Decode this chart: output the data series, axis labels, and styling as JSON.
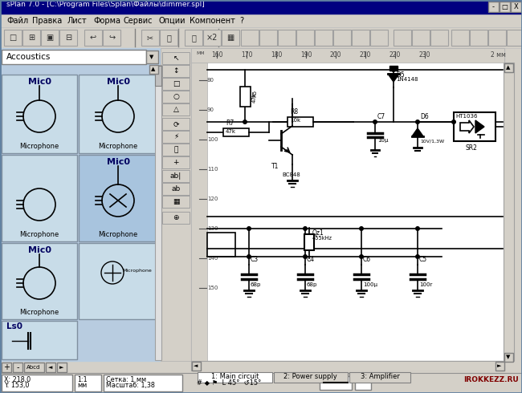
{
  "title": "sPlan 7.0 - [C:\\Program Files\\Splan\\Файлы\\dimmer.spl]",
  "bg_color": "#d4d0c8",
  "titlebar_color": "#000080",
  "titlebar_text_color": "#ffffff",
  "menubar_items": [
    "Файл",
    "Правка",
    "Лист",
    "Форма",
    "Сервис",
    "Опции",
    "Компонент",
    "?"
  ],
  "dropdown_text": "Accoustics",
  "tab_labels": [
    "1: Main circuit",
    "2: Power supply",
    "3: Amplifier"
  ],
  "statusbar_right": "IROKKEZZ.RU",
  "ruler_marks": [
    160,
    170,
    180,
    190,
    200,
    210,
    220,
    230
  ],
  "ruler_unit": "2 мм",
  "v_ruler_marks": [
    80,
    90,
    100,
    110,
    120,
    130,
    140,
    150
  ],
  "cap_data": [
    [
      310,
      330,
      "C3",
      "68p"
    ],
    [
      380,
      330,
      "C4",
      "68p"
    ],
    [
      450,
      330,
      "C6",
      "100μ"
    ],
    [
      520,
      330,
      "C5",
      "100r"
    ]
  ]
}
